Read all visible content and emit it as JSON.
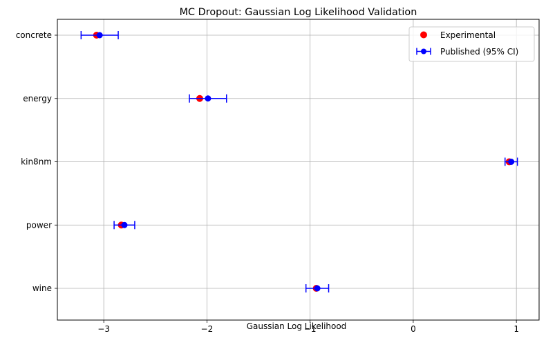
{
  "chart_data": {
    "type": "scatter",
    "title": "MC Dropout: Gaussian Log Likelihood Validation",
    "xlabel": "Gaussian Log Likelihood",
    "ylabel": "",
    "xlim": [
      -3.45,
      1.22
    ],
    "x_ticks": [
      -3,
      -2,
      -1,
      0,
      1
    ],
    "x_tick_labels": [
      "−3",
      "−2",
      "−1",
      "0",
      "1"
    ],
    "categories": [
      "concrete",
      "energy",
      "kin8nm",
      "power",
      "wine"
    ],
    "grid": true,
    "legend_position": "top-right",
    "series": [
      {
        "name": "Experimental",
        "kind": "scatter",
        "color": "#ff0000",
        "values": [
          -3.07,
          -2.07,
          0.93,
          -2.83,
          -0.94
        ]
      },
      {
        "name": "Published (95% CI)",
        "kind": "errorbar",
        "color": "#0000ff",
        "values": [
          -3.04,
          -1.99,
          0.95,
          -2.8,
          -0.93
        ],
        "ci_low": [
          -3.22,
          -2.17,
          0.89,
          -2.9,
          -1.04
        ],
        "ci_high": [
          -2.86,
          -1.81,
          1.01,
          -2.7,
          -0.82
        ]
      }
    ]
  }
}
